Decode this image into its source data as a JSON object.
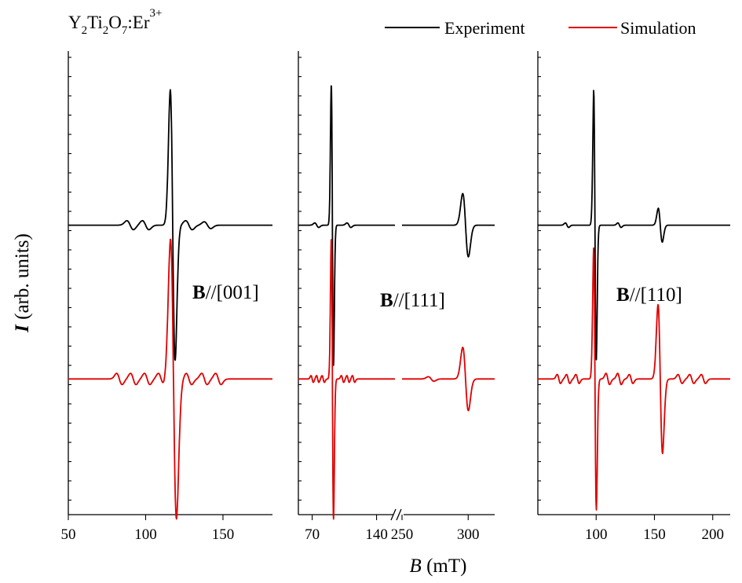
{
  "title": {
    "main": "Y",
    "s1": "2",
    "m1": "Ti",
    "s2": "2",
    "m2": "O",
    "s3": "7",
    "m3": ":Er",
    "sup": "3+"
  },
  "ylabel": {
    "italic": "I",
    "rest": " (arb. units)"
  },
  "xlabel": {
    "italic": "B",
    "rest": " (mT)"
  },
  "legend": [
    {
      "name": "Experiment",
      "color": "#000000"
    },
    {
      "name": "Simulation",
      "color": "#e00000"
    }
  ],
  "chart_data": [
    {
      "type": "line",
      "label_bold": "B",
      "label_rest": "//[001]",
      "xlim": [
        50,
        182
      ],
      "xticks": [
        50,
        100,
        150
      ],
      "xtick_labels": [
        "50",
        "100",
        "150"
      ],
      "series": [
        {
          "name": "Experiment",
          "color": "#000000",
          "baseline": 0.28,
          "lines": [
            {
              "center": 117.5,
              "amp": 0.6,
              "width": 2.2
            },
            {
              "center": 90,
              "amp": 0.02,
              "width": 3
            },
            {
              "center": 100,
              "amp": 0.02,
              "width": 3
            },
            {
              "center": 128,
              "amp": 0.02,
              "width": 3
            },
            {
              "center": 140,
              "amp": 0.015,
              "width": 3
            }
          ]
        },
        {
          "name": "Simulation",
          "color": "#e00000",
          "baseline": -0.4,
          "lines": [
            {
              "center": 118,
              "amp": 0.62,
              "width": 2.7
            },
            {
              "center": 83,
              "amp": 0.025,
              "width": 2.5
            },
            {
              "center": 92,
              "amp": 0.025,
              "width": 2.5
            },
            {
              "center": 101,
              "amp": 0.025,
              "width": 2.5
            },
            {
              "center": 110,
              "amp": 0.025,
              "width": 2.5
            },
            {
              "center": 128,
              "amp": 0.025,
              "width": 2.5
            },
            {
              "center": 138,
              "amp": 0.025,
              "width": 2.5
            },
            {
              "center": 147,
              "amp": 0.025,
              "width": 2.5
            }
          ]
        }
      ]
    },
    {
      "type": "line",
      "label_bold": "B",
      "label_rest": "//[111]",
      "broken_axis": true,
      "xlim_left": [
        55,
        160
      ],
      "xlim_right": [
        250,
        320
      ],
      "xticks_left": [
        70,
        140
      ],
      "xticks_right": [
        250,
        300
      ],
      "xtick_labels": [
        "70",
        "140",
        "250",
        "300"
      ],
      "series": [
        {
          "name": "Experiment",
          "color": "#000000",
          "baseline": 0.28,
          "lines": [
            {
              "center": 92,
              "amp": 0.62,
              "width": 1.7
            },
            {
              "center": 298,
              "amp": 0.14,
              "width": 3
            },
            {
              "center": 75,
              "amp": 0.01,
              "width": 3
            },
            {
              "center": 110,
              "amp": 0.01,
              "width": 3
            }
          ]
        },
        {
          "name": "Simulation",
          "color": "#e00000",
          "baseline": -0.4,
          "lines": [
            {
              "center": 92,
              "amp": 0.62,
              "width": 1.7
            },
            {
              "center": 298,
              "amp": 0.14,
              "width": 3
            },
            {
              "center": 70,
              "amp": 0.015,
              "width": 1.8
            },
            {
              "center": 76,
              "amp": 0.015,
              "width": 1.8
            },
            {
              "center": 82,
              "amp": 0.015,
              "width": 1.8
            },
            {
              "center": 103,
              "amp": 0.015,
              "width": 1.8
            },
            {
              "center": 109,
              "amp": 0.015,
              "width": 1.8
            },
            {
              "center": 115,
              "amp": 0.015,
              "width": 1.8
            },
            {
              "center": 272,
              "amp": 0.01,
              "width": 3
            }
          ]
        }
      ]
    },
    {
      "type": "line",
      "label_bold": "B",
      "label_rest": "//[110]",
      "xlim": [
        50,
        215
      ],
      "xticks": [
        100,
        150,
        200
      ],
      "xtick_labels": [
        "100",
        "150",
        "200"
      ],
      "series": [
        {
          "name": "Experiment",
          "color": "#000000",
          "baseline": 0.28,
          "lines": [
            {
              "center": 99,
              "amp": 0.6,
              "width": 1.5
            },
            {
              "center": 155,
              "amp": 0.075,
              "width": 2.4
            },
            {
              "center": 75,
              "amp": 0.01,
              "width": 2
            },
            {
              "center": 120,
              "amp": 0.01,
              "width": 2
            }
          ]
        },
        {
          "name": "Simulation",
          "color": "#e00000",
          "baseline": -0.4,
          "lines": [
            {
              "center": 99,
              "amp": 0.58,
              "width": 1.6
            },
            {
              "center": 155,
              "amp": 0.33,
              "width": 2.7
            },
            {
              "center": 68,
              "amp": 0.02,
              "width": 2
            },
            {
              "center": 76,
              "amp": 0.02,
              "width": 2
            },
            {
              "center": 84,
              "amp": 0.02,
              "width": 2
            },
            {
              "center": 110,
              "amp": 0.025,
              "width": 2.2
            },
            {
              "center": 120,
              "amp": 0.025,
              "width": 2.2
            },
            {
              "center": 130,
              "amp": 0.02,
              "width": 2.2
            },
            {
              "center": 172,
              "amp": 0.02,
              "width": 2.5
            },
            {
              "center": 182,
              "amp": 0.02,
              "width": 2.5
            },
            {
              "center": 192,
              "amp": 0.02,
              "width": 2.5
            }
          ]
        }
      ]
    }
  ]
}
